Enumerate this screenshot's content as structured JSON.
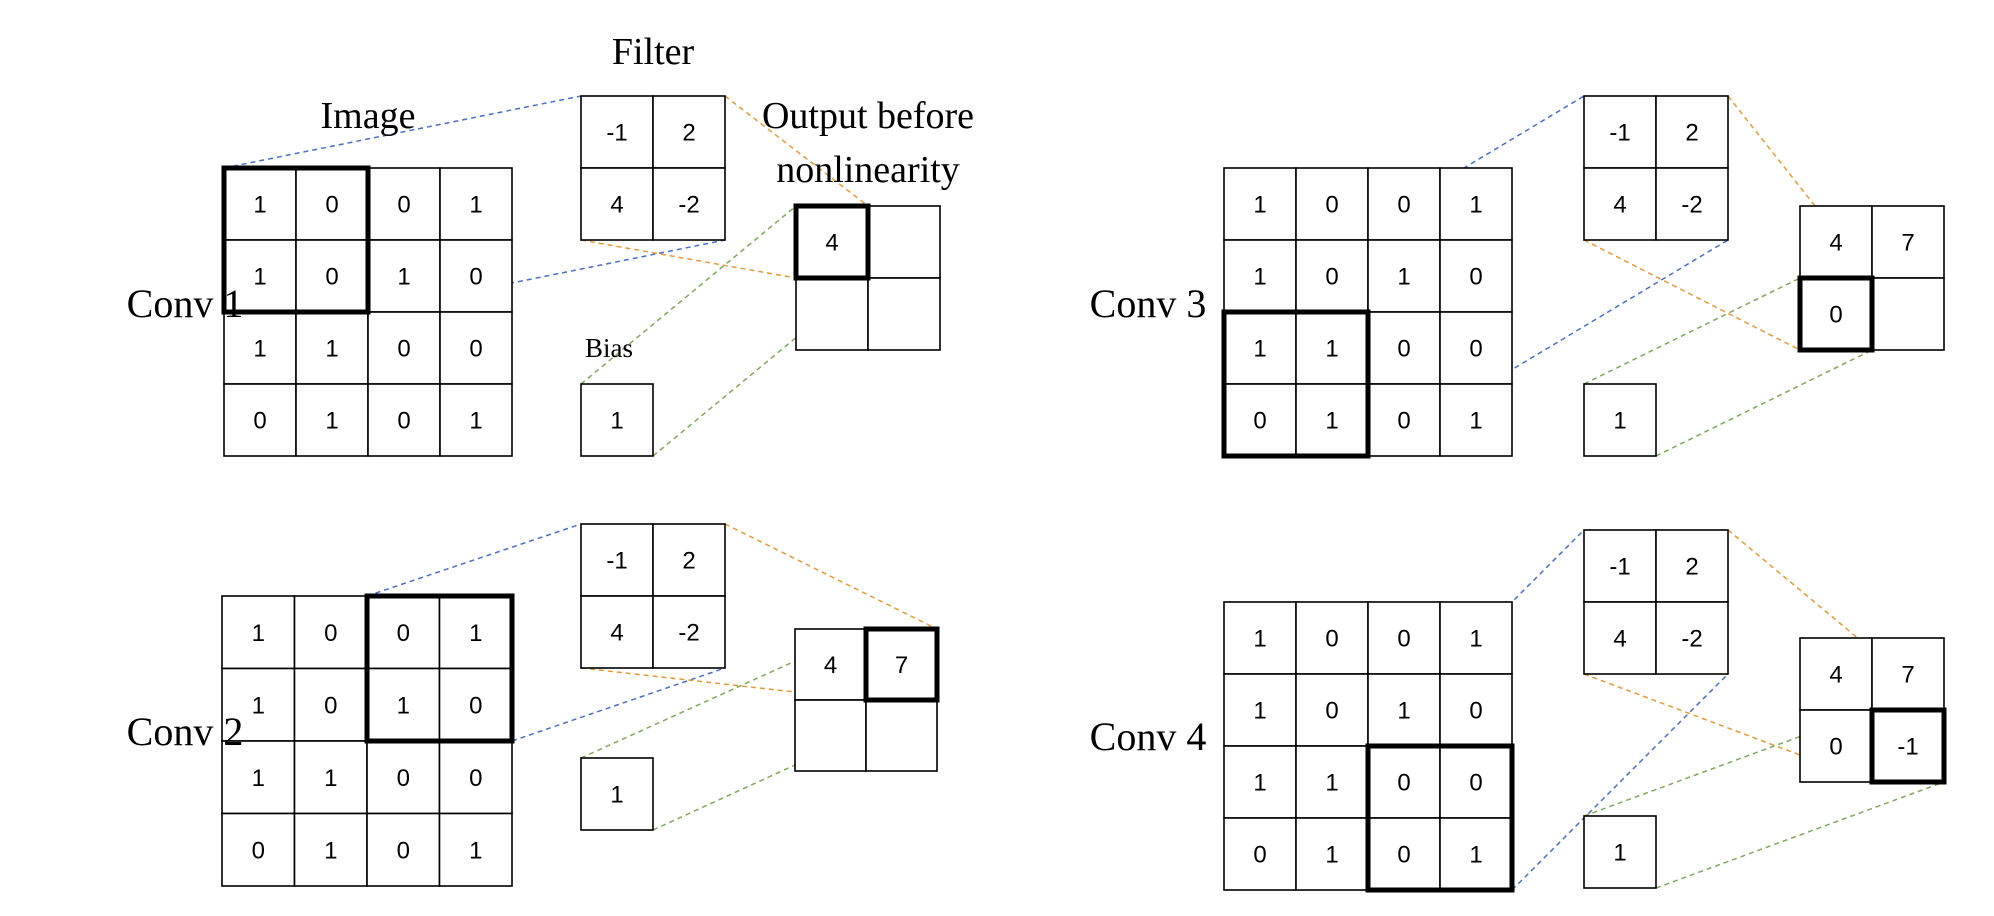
{
  "labels": {
    "filter": "Filter",
    "image": "Image",
    "output_line1": "Output before",
    "output_line2": "nonlinearity",
    "bias": "Bias"
  },
  "colors": {
    "image_to_filter": "#4a6fc9",
    "filter_to_output": "#e39a3a",
    "bias_to_output": "#7fa85a"
  },
  "image": [
    [
      1,
      0,
      0,
      1
    ],
    [
      1,
      0,
      1,
      0
    ],
    [
      1,
      1,
      0,
      0
    ],
    [
      0,
      1,
      0,
      1
    ]
  ],
  "filter": [
    [
      -1,
      2
    ],
    [
      4,
      -2
    ]
  ],
  "bias": 1,
  "steps": [
    {
      "title": "Conv 1",
      "window": [
        0,
        0
      ],
      "output": [
        [
          "4",
          ""
        ],
        [
          "",
          ""
        ]
      ],
      "active": [
        0,
        0
      ]
    },
    {
      "title": "Conv 2",
      "window": [
        0,
        2
      ],
      "output": [
        [
          "4",
          "7"
        ],
        [
          "",
          ""
        ]
      ],
      "active": [
        0,
        1
      ]
    },
    {
      "title": "Conv 3",
      "window": [
        2,
        0
      ],
      "output": [
        [
          "4",
          "7"
        ],
        [
          "0",
          ""
        ]
      ],
      "active": [
        1,
        0
      ]
    },
    {
      "title": "Conv 4",
      "window": [
        2,
        2
      ],
      "output": [
        [
          "4",
          "7"
        ],
        [
          "0",
          "-1"
        ]
      ],
      "active": [
        1,
        1
      ]
    }
  ]
}
